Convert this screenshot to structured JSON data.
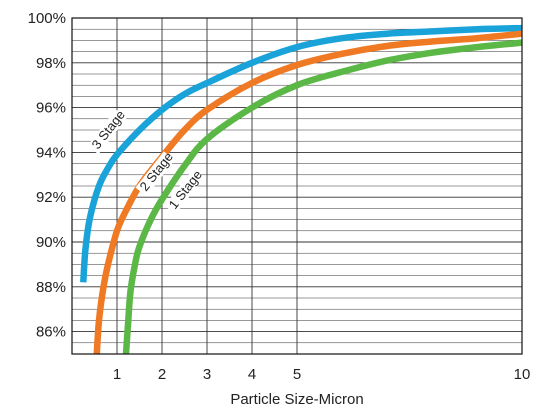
{
  "chart_data": {
    "type": "line",
    "title": "",
    "xlabel": "Particle Size-Micron",
    "ylabel": "",
    "x_ticks": [
      "1",
      "2",
      "3",
      "4",
      "5",
      "10"
    ],
    "y_ticks": [
      "86%",
      "88%",
      "90%",
      "92%",
      "94%",
      "96%",
      "98%",
      "100%"
    ],
    "xlim": [
      0,
      10
    ],
    "ylim": [
      85,
      100
    ],
    "grid": true,
    "legend": "none",
    "series": [
      {
        "name": "3 Stage",
        "color": "#1aa3d9",
        "x": [
          0.25,
          0.3,
          0.4,
          0.6,
          0.8,
          1,
          1.5,
          2,
          2.5,
          3,
          4,
          5,
          6,
          7,
          8,
          9,
          10
        ],
        "y": [
          88.2,
          89.7,
          91.1,
          92.5,
          93.3,
          93.9,
          95.0,
          95.9,
          96.6,
          97.1,
          98.0,
          98.7,
          99.1,
          99.3,
          99.4,
          99.5,
          99.55
        ]
      },
      {
        "name": "2 Stage",
        "color": "#f07a24",
        "x": [
          0.55,
          0.6,
          0.7,
          0.8,
          1,
          1.2,
          1.5,
          2,
          2.5,
          3,
          4,
          5,
          6,
          7,
          8,
          9,
          10
        ],
        "y": [
          85.0,
          86.5,
          88.0,
          89.0,
          90.5,
          91.4,
          92.5,
          93.8,
          95.0,
          95.9,
          97.1,
          97.9,
          98.4,
          98.75,
          98.95,
          99.1,
          99.3
        ]
      },
      {
        "name": "1 Stage",
        "color": "#5bb846",
        "x": [
          1.2,
          1.25,
          1.3,
          1.4,
          1.5,
          1.75,
          2,
          2.5,
          3,
          4,
          5,
          6,
          7,
          8,
          9,
          10
        ],
        "y": [
          85.0,
          86.5,
          87.8,
          89.0,
          89.8,
          91.0,
          91.9,
          93.4,
          94.6,
          96.0,
          97.0,
          97.6,
          98.1,
          98.45,
          98.7,
          98.9
        ]
      }
    ],
    "annotations": [
      {
        "text": "3 Stage",
        "series": "3 Stage"
      },
      {
        "text": "2 Stage",
        "series": "2 Stage"
      },
      {
        "text": "1 Stage",
        "series": "1 Stage"
      }
    ]
  }
}
